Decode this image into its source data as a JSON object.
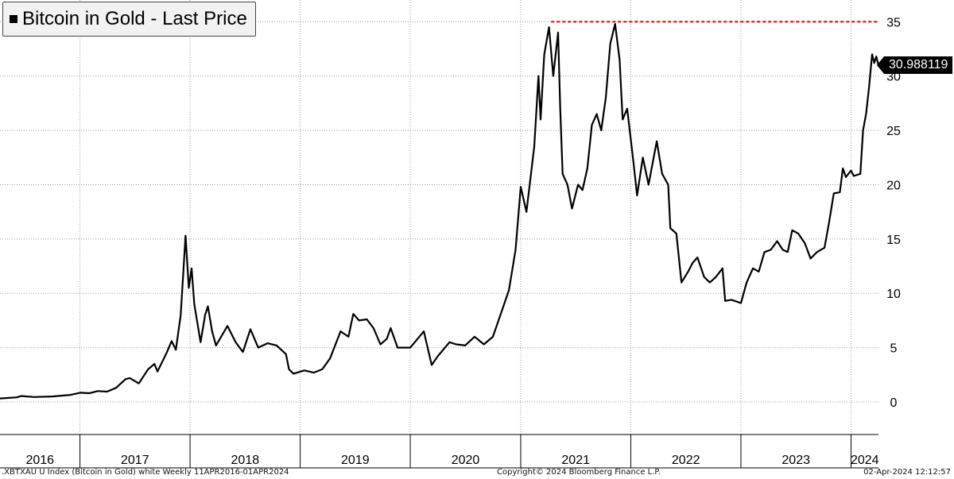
{
  "legend": {
    "label": "Bitcoin in Gold - Last Price",
    "swatch_color": "#000000"
  },
  "last_value_tag": "30.988119",
  "footer": {
    "left": ".XBTXAU U Index (Bitcoin in Gold) white  Weekly 11APR2016-01APR2024",
    "center": "Copyright© 2024 Bloomberg Finance L.P.",
    "right": "02-Apr-2024 12:12:57"
  },
  "chart_data": {
    "type": "line",
    "title": "Bitcoin in Gold - Last Price",
    "xlabel": "",
    "ylabel": "",
    "x_range": [
      "2016-04-11",
      "2024-04-01"
    ],
    "ylim": [
      -3,
      37
    ],
    "y_ticks": [
      0,
      5,
      10,
      15,
      20,
      25,
      30,
      35
    ],
    "y_tick_labels": [
      "0",
      "5",
      "10",
      "15",
      "20",
      "25",
      "30",
      "35"
    ],
    "x_ticks": [
      "2016",
      "2017",
      "2018",
      "2019",
      "2020",
      "2021",
      "2022",
      "2023",
      "2024"
    ],
    "grid": true,
    "line_color": "#000000",
    "reference_line": {
      "value": 35,
      "start": "2021-04-12",
      "end": "2024-04-01",
      "color": "#d40000",
      "style": "dashed"
    },
    "last_value": 30.988119,
    "series": [
      {
        "name": "Bitcoin in Gold - Last Price",
        "points": [
          [
            "2016-04-11",
            0.32
          ],
          [
            "2016-06-06",
            0.42
          ],
          [
            "2016-06-20",
            0.55
          ],
          [
            "2016-08-01",
            0.45
          ],
          [
            "2016-10-01",
            0.5
          ],
          [
            "2016-12-01",
            0.65
          ],
          [
            "2017-01-02",
            0.85
          ],
          [
            "2017-02-01",
            0.8
          ],
          [
            "2017-03-01",
            1.0
          ],
          [
            "2017-04-01",
            0.95
          ],
          [
            "2017-05-01",
            1.3
          ],
          [
            "2017-06-01",
            2.1
          ],
          [
            "2017-06-15",
            2.2
          ],
          [
            "2017-07-15",
            1.7
          ],
          [
            "2017-08-15",
            3.0
          ],
          [
            "2017-09-05",
            3.5
          ],
          [
            "2017-09-15",
            2.8
          ],
          [
            "2017-10-15",
            4.5
          ],
          [
            "2017-11-01",
            5.6
          ],
          [
            "2017-11-15",
            4.8
          ],
          [
            "2017-12-01",
            8.0
          ],
          [
            "2017-12-17",
            15.3
          ],
          [
            "2017-12-28",
            10.5
          ],
          [
            "2018-01-06",
            12.3
          ],
          [
            "2018-01-15",
            9.0
          ],
          [
            "2018-02-05",
            5.5
          ],
          [
            "2018-02-20",
            8.0
          ],
          [
            "2018-03-01",
            8.8
          ],
          [
            "2018-03-15",
            6.5
          ],
          [
            "2018-03-28",
            5.2
          ],
          [
            "2018-05-05",
            7.0
          ],
          [
            "2018-06-01",
            5.5
          ],
          [
            "2018-06-25",
            4.6
          ],
          [
            "2018-07-20",
            6.7
          ],
          [
            "2018-08-15",
            5.0
          ],
          [
            "2018-09-15",
            5.4
          ],
          [
            "2018-10-15",
            5.2
          ],
          [
            "2018-11-15",
            4.4
          ],
          [
            "2018-11-25",
            3.0
          ],
          [
            "2018-12-10",
            2.6
          ],
          [
            "2019-01-15",
            2.9
          ],
          [
            "2019-02-15",
            2.7
          ],
          [
            "2019-03-15",
            3.0
          ],
          [
            "2019-04-10",
            4.0
          ],
          [
            "2019-05-15",
            6.5
          ],
          [
            "2019-06-10",
            6.0
          ],
          [
            "2019-06-26",
            8.1
          ],
          [
            "2019-07-15",
            7.5
          ],
          [
            "2019-08-10",
            7.6
          ],
          [
            "2019-09-01",
            6.8
          ],
          [
            "2019-09-24",
            5.3
          ],
          [
            "2019-10-15",
            5.8
          ],
          [
            "2019-10-28",
            6.8
          ],
          [
            "2019-11-20",
            5.0
          ],
          [
            "2020-01-01",
            5.0
          ],
          [
            "2020-02-15",
            6.5
          ],
          [
            "2020-03-12",
            3.4
          ],
          [
            "2020-04-01",
            4.2
          ],
          [
            "2020-05-10",
            5.5
          ],
          [
            "2020-06-01",
            5.3
          ],
          [
            "2020-07-01",
            5.2
          ],
          [
            "2020-08-01",
            6.0
          ],
          [
            "2020-09-01",
            5.3
          ],
          [
            "2020-10-01",
            6.0
          ],
          [
            "2020-11-01",
            8.5
          ],
          [
            "2020-11-23",
            10.3
          ],
          [
            "2020-12-15",
            14.0
          ],
          [
            "2021-01-01",
            19.8
          ],
          [
            "2021-01-20",
            17.5
          ],
          [
            "2021-02-15",
            23.5
          ],
          [
            "2021-03-01",
            30.0
          ],
          [
            "2021-03-08",
            26.0
          ],
          [
            "2021-03-20",
            32.0
          ],
          [
            "2021-04-05",
            34.5
          ],
          [
            "2021-04-19",
            30.0
          ],
          [
            "2021-05-05",
            34.0
          ],
          [
            "2021-05-12",
            27.0
          ],
          [
            "2021-05-20",
            21.0
          ],
          [
            "2021-06-05",
            20.0
          ],
          [
            "2021-06-20",
            17.8
          ],
          [
            "2021-07-10",
            20.0
          ],
          [
            "2021-07-25",
            19.5
          ],
          [
            "2021-08-10",
            21.5
          ],
          [
            "2021-08-25",
            25.5
          ],
          [
            "2021-09-10",
            26.5
          ],
          [
            "2021-09-25",
            25.0
          ],
          [
            "2021-10-10",
            28.0
          ],
          [
            "2021-10-25",
            33.0
          ],
          [
            "2021-11-10",
            34.8
          ],
          [
            "2021-11-25",
            31.5
          ],
          [
            "2021-12-05",
            26.0
          ],
          [
            "2021-12-20",
            27.0
          ],
          [
            "2022-01-10",
            22.0
          ],
          [
            "2022-01-22",
            19.0
          ],
          [
            "2022-02-10",
            22.5
          ],
          [
            "2022-03-01",
            20.0
          ],
          [
            "2022-03-28",
            24.0
          ],
          [
            "2022-04-15",
            21.0
          ],
          [
            "2022-05-05",
            20.0
          ],
          [
            "2022-05-12",
            16.0
          ],
          [
            "2022-06-01",
            15.5
          ],
          [
            "2022-06-18",
            11.0
          ],
          [
            "2022-07-10",
            12.0
          ],
          [
            "2022-07-25",
            12.8
          ],
          [
            "2022-08-10",
            13.3
          ],
          [
            "2022-09-01",
            11.5
          ],
          [
            "2022-09-20",
            11.0
          ],
          [
            "2022-10-10",
            11.5
          ],
          [
            "2022-11-01",
            12.3
          ],
          [
            "2022-11-10",
            9.3
          ],
          [
            "2022-12-01",
            9.4
          ],
          [
            "2023-01-01",
            9.1
          ],
          [
            "2023-01-20",
            11.0
          ],
          [
            "2023-02-10",
            12.3
          ],
          [
            "2023-03-01",
            12.0
          ],
          [
            "2023-03-20",
            13.8
          ],
          [
            "2023-04-10",
            14.0
          ],
          [
            "2023-05-01",
            14.8
          ],
          [
            "2023-05-20",
            14.0
          ],
          [
            "2023-06-05",
            13.8
          ],
          [
            "2023-06-20",
            15.8
          ],
          [
            "2023-07-10",
            15.5
          ],
          [
            "2023-08-01",
            14.6
          ],
          [
            "2023-08-20",
            13.2
          ],
          [
            "2023-09-10",
            13.8
          ],
          [
            "2023-10-05",
            14.2
          ],
          [
            "2023-10-20",
            16.5
          ],
          [
            "2023-11-05",
            19.2
          ],
          [
            "2023-11-25",
            19.3
          ],
          [
            "2023-12-05",
            21.5
          ],
          [
            "2023-12-15",
            20.7
          ],
          [
            "2024-01-01",
            21.3
          ],
          [
            "2024-01-10",
            20.8
          ],
          [
            "2024-02-01",
            21.0
          ],
          [
            "2024-02-10",
            25.0
          ],
          [
            "2024-02-20",
            26.5
          ],
          [
            "2024-03-01",
            29.0
          ],
          [
            "2024-03-11",
            32.0
          ],
          [
            "2024-03-18",
            31.2
          ],
          [
            "2024-03-25",
            31.8
          ],
          [
            "2024-04-01",
            30.988119
          ]
        ]
      }
    ]
  }
}
